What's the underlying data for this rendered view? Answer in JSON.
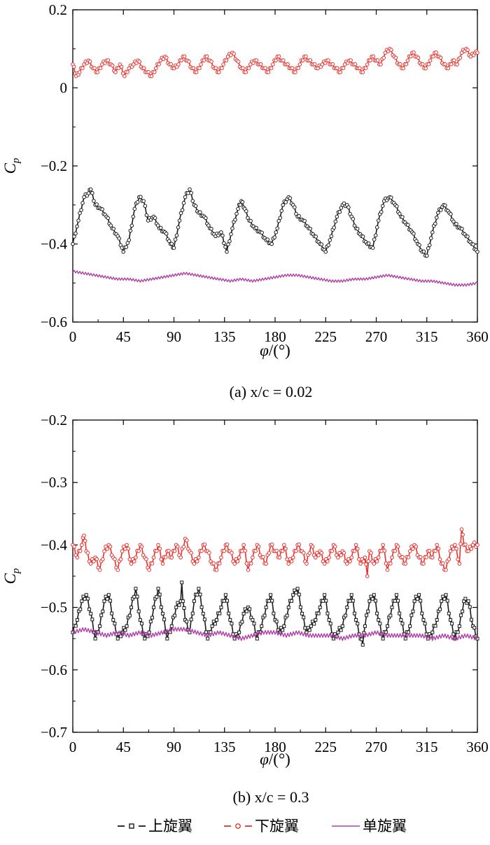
{
  "chart_data": [
    {
      "type": "line",
      "caption": "(a) x/c = 0.02",
      "xlabel": "φ/(°)",
      "ylabel": "C_p",
      "xlim": [
        0,
        360
      ],
      "ylim": [
        -0.6,
        0.2
      ],
      "xticks": [
        "0",
        "45",
        "90",
        "135",
        "180",
        "225",
        "270",
        "315",
        "360"
      ],
      "xtick_values": [
        0,
        45,
        90,
        135,
        180,
        225,
        270,
        315,
        360
      ],
      "yticks": [
        "0.2",
        "0",
        "−0.2",
        "−0.4",
        "−0.6"
      ],
      "ytick_values": [
        0.2,
        0,
        -0.2,
        -0.4,
        -0.6
      ],
      "grid": false,
      "series": [
        {
          "name": "上旋翼",
          "color": "#1a1a1a",
          "marker": "circle",
          "x": [
            0,
            5,
            10,
            14,
            16,
            20,
            25,
            30,
            35,
            40,
            45,
            50,
            55,
            59,
            63,
            67,
            72,
            77,
            82,
            87,
            90,
            95,
            100,
            104,
            108,
            112,
            117,
            122,
            127,
            132,
            137,
            142,
            147,
            150,
            153,
            157,
            162,
            167,
            172,
            177,
            182,
            187,
            192,
            196,
            200,
            205,
            210,
            215,
            220,
            225,
            230,
            235,
            240,
            244,
            248,
            252,
            257,
            262,
            267,
            272,
            277,
            282,
            287,
            292,
            297,
            302,
            307,
            311,
            315,
            320,
            325,
            330,
            335,
            340,
            345,
            350,
            355,
            360
          ],
          "values": [
            -0.4,
            -0.34,
            -0.28,
            -0.27,
            -0.26,
            -0.3,
            -0.31,
            -0.33,
            -0.36,
            -0.38,
            -0.42,
            -0.39,
            -0.31,
            -0.28,
            -0.29,
            -0.34,
            -0.33,
            -0.36,
            -0.37,
            -0.4,
            -0.41,
            -0.34,
            -0.28,
            -0.26,
            -0.3,
            -0.32,
            -0.33,
            -0.36,
            -0.38,
            -0.37,
            -0.42,
            -0.36,
            -0.31,
            -0.29,
            -0.31,
            -0.34,
            -0.36,
            -0.37,
            -0.39,
            -0.4,
            -0.36,
            -0.3,
            -0.28,
            -0.3,
            -0.33,
            -0.34,
            -0.36,
            -0.38,
            -0.4,
            -0.42,
            -0.38,
            -0.33,
            -0.3,
            -0.3,
            -0.33,
            -0.36,
            -0.38,
            -0.4,
            -0.41,
            -0.34,
            -0.29,
            -0.28,
            -0.3,
            -0.33,
            -0.35,
            -0.37,
            -0.4,
            -0.42,
            -0.43,
            -0.37,
            -0.32,
            -0.3,
            -0.32,
            -0.35,
            -0.36,
            -0.38,
            -0.4,
            -0.42
          ]
        },
        {
          "name": "下旋翼",
          "color": "#e8322d",
          "marker": "circle",
          "x": [
            0,
            3,
            6,
            10,
            14,
            18,
            22,
            26,
            30,
            34,
            38,
            42,
            46,
            50,
            54,
            58,
            62,
            66,
            70,
            74,
            78,
            82,
            86,
            90,
            94,
            98,
            102,
            106,
            110,
            114,
            118,
            122,
            126,
            130,
            134,
            138,
            142,
            146,
            150,
            154,
            158,
            162,
            166,
            170,
            174,
            178,
            182,
            186,
            190,
            194,
            198,
            202,
            206,
            210,
            214,
            218,
            222,
            226,
            230,
            234,
            238,
            242,
            246,
            250,
            254,
            258,
            262,
            266,
            270,
            274,
            278,
            282,
            286,
            290,
            294,
            298,
            302,
            306,
            310,
            314,
            318,
            322,
            326,
            330,
            334,
            338,
            342,
            346,
            350,
            354,
            358,
            360
          ],
          "values": [
            0.06,
            0.03,
            0.04,
            0.06,
            0.07,
            0.05,
            0.04,
            0.06,
            0.07,
            0.06,
            0.04,
            0.06,
            0.03,
            0.05,
            0.06,
            0.07,
            0.05,
            0.04,
            0.03,
            0.05,
            0.07,
            0.08,
            0.06,
            0.05,
            0.06,
            0.08,
            0.07,
            0.05,
            0.04,
            0.06,
            0.08,
            0.07,
            0.05,
            0.04,
            0.06,
            0.08,
            0.09,
            0.07,
            0.05,
            0.04,
            0.06,
            0.07,
            0.06,
            0.05,
            0.04,
            0.06,
            0.08,
            0.07,
            0.06,
            0.05,
            0.04,
            0.06,
            0.08,
            0.07,
            0.06,
            0.05,
            0.06,
            0.07,
            0.06,
            0.05,
            0.04,
            0.06,
            0.07,
            0.06,
            0.05,
            0.04,
            0.06,
            0.08,
            0.07,
            0.06,
            0.09,
            0.1,
            0.08,
            0.06,
            0.05,
            0.07,
            0.09,
            0.08,
            0.06,
            0.05,
            0.07,
            0.09,
            0.08,
            0.06,
            0.05,
            0.07,
            0.06,
            0.09,
            0.1,
            0.08,
            0.09,
            0.09
          ]
        },
        {
          "name": "单旋翼",
          "color": "#b040a8",
          "marker": "none",
          "x": [
            0,
            10,
            20,
            30,
            40,
            50,
            60,
            70,
            80,
            90,
            100,
            110,
            120,
            130,
            140,
            150,
            160,
            170,
            180,
            190,
            200,
            210,
            220,
            230,
            240,
            250,
            260,
            270,
            280,
            290,
            300,
            310,
            320,
            330,
            340,
            350,
            360
          ],
          "values": [
            -0.47,
            -0.475,
            -0.48,
            -0.485,
            -0.49,
            -0.49,
            -0.495,
            -0.49,
            -0.485,
            -0.48,
            -0.475,
            -0.48,
            -0.485,
            -0.49,
            -0.495,
            -0.49,
            -0.495,
            -0.49,
            -0.485,
            -0.48,
            -0.48,
            -0.485,
            -0.49,
            -0.495,
            -0.495,
            -0.49,
            -0.49,
            -0.485,
            -0.48,
            -0.485,
            -0.49,
            -0.495,
            -0.495,
            -0.5,
            -0.505,
            -0.505,
            -0.5
          ]
        }
      ]
    },
    {
      "type": "line",
      "caption": "(b) x/c = 0.3",
      "xlabel": "φ/(°)",
      "ylabel": "C_p",
      "xlim": [
        0,
        360
      ],
      "ylim": [
        -0.7,
        -0.2
      ],
      "xticks": [
        "0",
        "45",
        "90",
        "135",
        "180",
        "225",
        "270",
        "315",
        "360"
      ],
      "xtick_values": [
        0,
        45,
        90,
        135,
        180,
        225,
        270,
        315,
        360
      ],
      "yticks": [
        "−0.2",
        "−0.3",
        "−0.4",
        "−0.5",
        "−0.6",
        "−0.7"
      ],
      "ytick_values": [
        -0.2,
        -0.3,
        -0.4,
        -0.5,
        -0.6,
        -0.7
      ],
      "grid": false,
      "series": [
        {
          "name": "上旋翼",
          "color": "#1a1a1a",
          "marker": "square",
          "x": [
            0,
            4,
            8,
            12,
            16,
            20,
            24,
            28,
            32,
            36,
            40,
            44,
            48,
            52,
            56,
            60,
            64,
            68,
            72,
            76,
            80,
            84,
            88,
            92,
            96,
            97,
            98,
            100,
            104,
            108,
            112,
            116,
            120,
            124,
            128,
            132,
            136,
            140,
            144,
            148,
            152,
            156,
            160,
            164,
            168,
            172,
            176,
            180,
            184,
            188,
            192,
            196,
            200,
            204,
            208,
            212,
            216,
            220,
            224,
            228,
            232,
            236,
            240,
            244,
            248,
            252,
            256,
            258,
            260,
            264,
            268,
            272,
            276,
            280,
            284,
            288,
            292,
            296,
            300,
            304,
            308,
            312,
            316,
            320,
            324,
            328,
            332,
            336,
            340,
            344,
            348,
            352,
            356,
            360
          ],
          "values": [
            -0.54,
            -0.52,
            -0.49,
            -0.48,
            -0.51,
            -0.55,
            -0.53,
            -0.49,
            -0.48,
            -0.52,
            -0.55,
            -0.54,
            -0.53,
            -0.5,
            -0.47,
            -0.52,
            -0.55,
            -0.54,
            -0.5,
            -0.47,
            -0.51,
            -0.55,
            -0.53,
            -0.5,
            -0.49,
            -0.46,
            -0.49,
            -0.52,
            -0.54,
            -0.49,
            -0.47,
            -0.51,
            -0.55,
            -0.53,
            -0.52,
            -0.5,
            -0.48,
            -0.52,
            -0.55,
            -0.54,
            -0.51,
            -0.5,
            -0.52,
            -0.55,
            -0.53,
            -0.5,
            -0.48,
            -0.52,
            -0.54,
            -0.53,
            -0.5,
            -0.48,
            -0.47,
            -0.51,
            -0.54,
            -0.53,
            -0.52,
            -0.5,
            -0.48,
            -0.52,
            -0.55,
            -0.54,
            -0.53,
            -0.5,
            -0.48,
            -0.52,
            -0.55,
            -0.56,
            -0.53,
            -0.49,
            -0.48,
            -0.52,
            -0.55,
            -0.53,
            -0.5,
            -0.48,
            -0.52,
            -0.55,
            -0.53,
            -0.49,
            -0.48,
            -0.52,
            -0.55,
            -0.54,
            -0.52,
            -0.49,
            -0.48,
            -0.52,
            -0.55,
            -0.53,
            -0.49,
            -0.49,
            -0.53,
            -0.55
          ]
        },
        {
          "name": "下旋翼",
          "color": "#e8322d",
          "marker": "circle",
          "x": [
            0,
            4,
            8,
            10,
            12,
            16,
            20,
            24,
            28,
            32,
            36,
            40,
            44,
            48,
            52,
            56,
            60,
            64,
            68,
            72,
            76,
            80,
            84,
            88,
            92,
            96,
            100,
            104,
            108,
            112,
            116,
            120,
            124,
            128,
            132,
            136,
            140,
            144,
            148,
            152,
            156,
            160,
            164,
            168,
            172,
            176,
            180,
            184,
            188,
            192,
            196,
            200,
            204,
            208,
            212,
            216,
            220,
            224,
            228,
            232,
            236,
            240,
            244,
            248,
            252,
            256,
            260,
            262,
            264,
            268,
            272,
            276,
            280,
            284,
            288,
            292,
            296,
            300,
            304,
            308,
            312,
            316,
            320,
            324,
            328,
            332,
            336,
            340,
            344,
            346,
            348,
            352,
            356,
            360
          ],
          "values": [
            -0.4,
            -0.42,
            -0.4,
            -0.385,
            -0.41,
            -0.43,
            -0.42,
            -0.44,
            -0.41,
            -0.4,
            -0.42,
            -0.44,
            -0.41,
            -0.4,
            -0.43,
            -0.42,
            -0.4,
            -0.42,
            -0.44,
            -0.42,
            -0.4,
            -0.43,
            -0.41,
            -0.42,
            -0.4,
            -0.42,
            -0.39,
            -0.41,
            -0.43,
            -0.42,
            -0.4,
            -0.41,
            -0.43,
            -0.44,
            -0.42,
            -0.4,
            -0.41,
            -0.43,
            -0.42,
            -0.4,
            -0.44,
            -0.42,
            -0.4,
            -0.42,
            -0.43,
            -0.4,
            -0.41,
            -0.42,
            -0.4,
            -0.43,
            -0.42,
            -0.4,
            -0.41,
            -0.43,
            -0.4,
            -0.42,
            -0.41,
            -0.43,
            -0.42,
            -0.4,
            -0.42,
            -0.41,
            -0.43,
            -0.42,
            -0.4,
            -0.43,
            -0.42,
            -0.45,
            -0.41,
            -0.43,
            -0.42,
            -0.4,
            -0.44,
            -0.42,
            -0.4,
            -0.42,
            -0.43,
            -0.41,
            -0.4,
            -0.42,
            -0.43,
            -0.41,
            -0.42,
            -0.4,
            -0.43,
            -0.44,
            -0.41,
            -0.4,
            -0.43,
            -0.375,
            -0.4,
            -0.41,
            -0.4,
            -0.4
          ]
        },
        {
          "name": "单旋翼",
          "color": "#b040a8",
          "marker": "none",
          "x": [
            0,
            10,
            20,
            30,
            40,
            50,
            60,
            70,
            80,
            90,
            100,
            110,
            120,
            130,
            140,
            150,
            160,
            170,
            180,
            190,
            200,
            210,
            220,
            230,
            240,
            250,
            260,
            270,
            280,
            290,
            300,
            310,
            320,
            330,
            340,
            350,
            360
          ],
          "values": [
            -0.54,
            -0.535,
            -0.54,
            -0.545,
            -0.54,
            -0.545,
            -0.54,
            -0.545,
            -0.54,
            -0.535,
            -0.535,
            -0.54,
            -0.545,
            -0.54,
            -0.545,
            -0.55,
            -0.545,
            -0.54,
            -0.54,
            -0.545,
            -0.54,
            -0.545,
            -0.545,
            -0.545,
            -0.55,
            -0.545,
            -0.545,
            -0.54,
            -0.545,
            -0.545,
            -0.545,
            -0.545,
            -0.55,
            -0.545,
            -0.55,
            -0.545,
            -0.55
          ]
        }
      ]
    }
  ],
  "legend": {
    "position": "bottom",
    "items": [
      {
        "label": "上旋翼",
        "color": "#1a1a1a",
        "marker": "square"
      },
      {
        "label": "下旋翼",
        "color": "#e8322d",
        "marker": "circle"
      },
      {
        "label": "单旋翼",
        "color": "#b040a8",
        "marker": "none"
      }
    ]
  }
}
